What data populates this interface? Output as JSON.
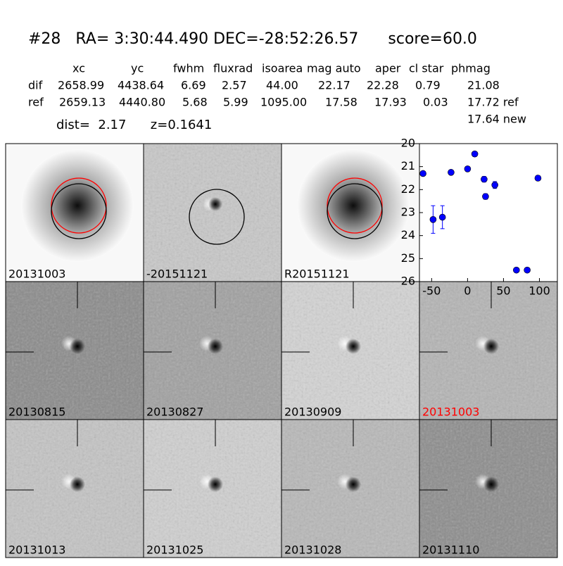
{
  "header": {
    "title": "#28   RA= 3:30:44.490 DEC=-28:52:26.57      score=60.0",
    "distance_line": "dist=  2.17      z=0.1641"
  },
  "table": {
    "columns": [
      "xc",
      "yc",
      "fwhm",
      "fluxrad",
      "isoarea",
      "mag auto",
      "aper",
      "cl star",
      "phmag"
    ],
    "rows": [
      [
        "dif",
        "2658.99",
        "4438.64",
        "6.69",
        "2.57",
        "44.00",
        "22.17",
        "22.28",
        "0.79",
        "21.08"
      ],
      [
        "ref",
        "2659.13",
        "4440.80",
        "5.68",
        "5.99",
        "1095.00",
        "17.58",
        "17.93",
        "0.03",
        "17.72 ref"
      ]
    ],
    "extra": "17.64 new"
  },
  "panels": [
    {
      "label": "20131003",
      "color": "#000000"
    },
    {
      "label": "-20151121",
      "color": "#000000"
    },
    {
      "label": "R20151121",
      "color": "#000000"
    },
    {
      "label": "20130815",
      "color": "#000000"
    },
    {
      "label": "20130827",
      "color": "#000000"
    },
    {
      "label": "20130909",
      "color": "#000000"
    },
    {
      "label": "20131003",
      "color": "#ff0000"
    },
    {
      "label": "20131013",
      "color": "#000000"
    },
    {
      "label": "20131025",
      "color": "#000000"
    },
    {
      "label": "20131028",
      "color": "#000000"
    },
    {
      "label": "20131110",
      "color": "#000000"
    }
  ],
  "chart_data": {
    "type": "scatter",
    "x": [
      -62,
      -48,
      -35,
      -23,
      0,
      10,
      23,
      25,
      38,
      68,
      83,
      98
    ],
    "values": [
      21.3,
      23.3,
      23.2,
      21.25,
      21.1,
      20.45,
      21.55,
      22.3,
      21.8,
      25.5,
      25.5,
      21.5
    ],
    "errors": [
      0.05,
      0.6,
      0.5,
      0.05,
      0.05,
      0.05,
      0.12,
      0.12,
      0.15,
      0.05,
      0.05,
      0.1
    ],
    "color": "#0000ff",
    "xlim": [
      -67,
      125
    ],
    "ylim": [
      20,
      26
    ],
    "y_inverted": true,
    "xticks": [
      -50,
      0,
      50,
      100
    ],
    "yticks": [
      20,
      21,
      22,
      23,
      24,
      25,
      26
    ]
  }
}
